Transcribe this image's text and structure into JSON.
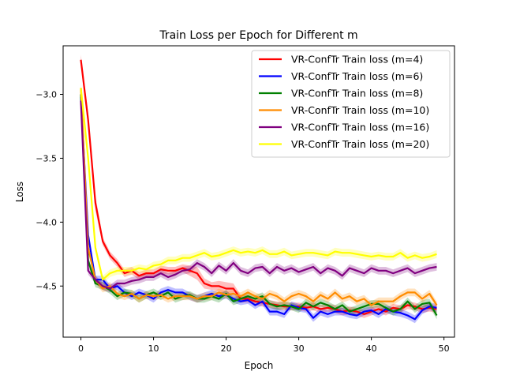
{
  "chart_data": {
    "type": "line",
    "title": "Train Loss per Epoch for Different m",
    "xlabel": "Epoch",
    "ylabel": "Loss",
    "xlim": [
      -2.45,
      51.45
    ],
    "ylim": [
      -4.9,
      -2.62
    ],
    "xticks": [
      0,
      10,
      20,
      30,
      40,
      50
    ],
    "yticks": [
      -3.0,
      -3.5,
      -4.0,
      -4.5
    ],
    "xtick_labels": [
      "0",
      "10",
      "20",
      "30",
      "40",
      "50"
    ],
    "ytick_labels": [
      "−3.0",
      "−3.5",
      "−4.0",
      "−4.5"
    ],
    "grid": false,
    "legend_position": "top-right",
    "series": [
      {
        "name": "VR-ConfTr Train loss (m=4)",
        "color": "#ff0000",
        "values": [
          -2.73,
          -3.2,
          -3.85,
          -4.15,
          -4.26,
          -4.32,
          -4.4,
          -4.38,
          -4.42,
          -4.4,
          -4.4,
          -4.37,
          -4.38,
          -4.38,
          -4.36,
          -4.38,
          -4.4,
          -4.48,
          -4.5,
          -4.5,
          -4.52,
          -4.52,
          -4.6,
          -4.6,
          -4.62,
          -4.63,
          -4.64,
          -4.65,
          -4.66,
          -4.66,
          -4.66,
          -4.67,
          -4.66,
          -4.68,
          -4.67,
          -4.68,
          -4.7,
          -4.69,
          -4.7,
          -4.72,
          -4.7,
          -4.68,
          -4.7,
          -4.67,
          -4.68,
          -4.65,
          -4.66,
          -4.68,
          -4.67,
          -4.68
        ],
        "band": [
          0.04,
          0.06,
          0.06,
          0.03,
          0.03,
          0.03,
          0.03,
          0.03,
          0.03,
          0.03,
          0.03,
          0.03,
          0.03,
          0.03,
          0.03,
          0.04,
          0.05,
          0.04,
          0.03,
          0.04,
          0.05,
          0.04,
          0.03,
          0.03,
          0.03,
          0.03,
          0.03,
          0.03,
          0.03,
          0.03,
          0.03,
          0.03,
          0.03,
          0.03,
          0.03,
          0.03,
          0.03,
          0.03,
          0.03,
          0.03,
          0.03,
          0.03,
          0.03,
          0.03,
          0.03,
          0.03,
          0.03,
          0.03,
          0.03,
          0.03
        ]
      },
      {
        "name": "VR-ConfTr Train loss (m=6)",
        "color": "#0000ff",
        "values": [
          -3.02,
          -4.1,
          -4.45,
          -4.45,
          -4.52,
          -4.5,
          -4.55,
          -4.58,
          -4.55,
          -4.57,
          -4.6,
          -4.55,
          -4.53,
          -4.55,
          -4.55,
          -4.58,
          -4.6,
          -4.58,
          -4.56,
          -4.58,
          -4.57,
          -4.6,
          -4.62,
          -4.61,
          -4.65,
          -4.62,
          -4.7,
          -4.7,
          -4.72,
          -4.65,
          -4.67,
          -4.68,
          -4.75,
          -4.7,
          -4.72,
          -4.7,
          -4.7,
          -4.72,
          -4.73,
          -4.7,
          -4.69,
          -4.72,
          -4.68,
          -4.7,
          -4.71,
          -4.73,
          -4.76,
          -4.69,
          -4.66,
          -4.67
        ],
        "band": [
          0.03,
          0.03,
          0.03,
          0.03,
          0.03,
          0.03,
          0.03,
          0.03,
          0.03,
          0.03,
          0.03,
          0.03,
          0.03,
          0.03,
          0.03,
          0.03,
          0.03,
          0.03,
          0.03,
          0.03,
          0.03,
          0.03,
          0.03,
          0.03,
          0.03,
          0.03,
          0.03,
          0.03,
          0.03,
          0.03,
          0.03,
          0.03,
          0.03,
          0.03,
          0.03,
          0.03,
          0.03,
          0.03,
          0.03,
          0.03,
          0.03,
          0.03,
          0.03,
          0.03,
          0.03,
          0.03,
          0.03,
          0.03,
          0.03,
          0.03
        ]
      },
      {
        "name": "VR-ConfTr Train loss (m=8)",
        "color": "#008000",
        "values": [
          -3.0,
          -4.3,
          -4.48,
          -4.5,
          -4.53,
          -4.58,
          -4.55,
          -4.56,
          -4.6,
          -4.57,
          -4.55,
          -4.58,
          -4.55,
          -4.6,
          -4.58,
          -4.57,
          -4.6,
          -4.6,
          -4.58,
          -4.6,
          -4.56,
          -4.62,
          -4.6,
          -4.58,
          -4.6,
          -4.58,
          -4.64,
          -4.66,
          -4.65,
          -4.66,
          -4.68,
          -4.63,
          -4.66,
          -4.63,
          -4.65,
          -4.68,
          -4.65,
          -4.7,
          -4.68,
          -4.66,
          -4.64,
          -4.64,
          -4.67,
          -4.7,
          -4.68,
          -4.62,
          -4.68,
          -4.64,
          -4.63,
          -4.73
        ],
        "band": [
          0.03,
          0.03,
          0.03,
          0.03,
          0.03,
          0.03,
          0.03,
          0.03,
          0.03,
          0.03,
          0.03,
          0.03,
          0.03,
          0.03,
          0.03,
          0.03,
          0.03,
          0.03,
          0.03,
          0.03,
          0.03,
          0.03,
          0.03,
          0.03,
          0.03,
          0.03,
          0.03,
          0.03,
          0.03,
          0.03,
          0.03,
          0.03,
          0.03,
          0.03,
          0.03,
          0.03,
          0.03,
          0.03,
          0.03,
          0.03,
          0.03,
          0.03,
          0.03,
          0.03,
          0.03,
          0.03,
          0.03,
          0.03,
          0.03,
          0.03
        ]
      },
      {
        "name": "VR-ConfTr Train loss (m=10)",
        "color": "#ff8c00",
        "values": [
          -2.95,
          -4.2,
          -4.45,
          -4.52,
          -4.5,
          -4.56,
          -4.58,
          -4.56,
          -4.6,
          -4.57,
          -4.58,
          -4.57,
          -4.6,
          -4.58,
          -4.58,
          -4.58,
          -4.6,
          -4.58,
          -4.58,
          -4.55,
          -4.57,
          -4.56,
          -4.58,
          -4.55,
          -4.58,
          -4.6,
          -4.56,
          -4.58,
          -4.62,
          -4.58,
          -4.56,
          -4.58,
          -4.62,
          -4.57,
          -4.6,
          -4.55,
          -4.6,
          -4.58,
          -4.62,
          -4.6,
          -4.65,
          -4.62,
          -4.62,
          -4.62,
          -4.58,
          -4.55,
          -4.55,
          -4.6,
          -4.56,
          -4.65
        ],
        "band": [
          0.03,
          0.03,
          0.03,
          0.03,
          0.03,
          0.03,
          0.03,
          0.03,
          0.03,
          0.03,
          0.03,
          0.03,
          0.03,
          0.03,
          0.03,
          0.03,
          0.03,
          0.03,
          0.03,
          0.03,
          0.03,
          0.03,
          0.03,
          0.03,
          0.03,
          0.03,
          0.03,
          0.03,
          0.03,
          0.03,
          0.03,
          0.03,
          0.03,
          0.03,
          0.03,
          0.03,
          0.03,
          0.03,
          0.03,
          0.03,
          0.03,
          0.03,
          0.03,
          0.03,
          0.03,
          0.03,
          0.03,
          0.03,
          0.03,
          0.03
        ]
      },
      {
        "name": "VR-ConfTr Train loss (m=16)",
        "color": "#800080",
        "values": [
          -3.05,
          -4.38,
          -4.45,
          -4.5,
          -4.52,
          -4.48,
          -4.48,
          -4.46,
          -4.45,
          -4.43,
          -4.43,
          -4.4,
          -4.43,
          -4.41,
          -4.38,
          -4.37,
          -4.32,
          -4.35,
          -4.4,
          -4.34,
          -4.38,
          -4.32,
          -4.38,
          -4.4,
          -4.36,
          -4.35,
          -4.4,
          -4.35,
          -4.38,
          -4.36,
          -4.39,
          -4.37,
          -4.35,
          -4.4,
          -4.36,
          -4.38,
          -4.42,
          -4.36,
          -4.38,
          -4.4,
          -4.36,
          -4.38,
          -4.38,
          -4.4,
          -4.38,
          -4.36,
          -4.4,
          -4.38,
          -4.36,
          -4.35
        ],
        "band": [
          0.03,
          0.03,
          0.03,
          0.03,
          0.03,
          0.03,
          0.03,
          0.03,
          0.03,
          0.03,
          0.03,
          0.03,
          0.03,
          0.03,
          0.03,
          0.03,
          0.03,
          0.03,
          0.03,
          0.03,
          0.03,
          0.03,
          0.03,
          0.03,
          0.03,
          0.03,
          0.03,
          0.03,
          0.03,
          0.03,
          0.03,
          0.03,
          0.03,
          0.03,
          0.03,
          0.03,
          0.03,
          0.03,
          0.03,
          0.03,
          0.03,
          0.03,
          0.03,
          0.03,
          0.03,
          0.03,
          0.03,
          0.03,
          0.03,
          0.03
        ]
      },
      {
        "name": "VR-ConfTr Train loss (m=20)",
        "color": "#ffff00",
        "values": [
          -2.95,
          -3.5,
          -4.2,
          -4.45,
          -4.4,
          -4.38,
          -4.38,
          -4.38,
          -4.36,
          -4.37,
          -4.34,
          -4.33,
          -4.3,
          -4.3,
          -4.28,
          -4.28,
          -4.26,
          -4.24,
          -4.27,
          -4.26,
          -4.24,
          -4.22,
          -4.24,
          -4.23,
          -4.24,
          -4.22,
          -4.25,
          -4.25,
          -4.23,
          -4.26,
          -4.25,
          -4.24,
          -4.24,
          -4.25,
          -4.26,
          -4.23,
          -4.24,
          -4.24,
          -4.25,
          -4.26,
          -4.27,
          -4.26,
          -4.27,
          -4.27,
          -4.24,
          -4.28,
          -4.26,
          -4.28,
          -4.27,
          -4.25
        ],
        "band": [
          0.03,
          0.03,
          0.03,
          0.03,
          0.03,
          0.03,
          0.03,
          0.03,
          0.03,
          0.03,
          0.03,
          0.03,
          0.03,
          0.03,
          0.03,
          0.03,
          0.03,
          0.03,
          0.03,
          0.03,
          0.03,
          0.03,
          0.03,
          0.03,
          0.03,
          0.03,
          0.03,
          0.03,
          0.03,
          0.03,
          0.03,
          0.03,
          0.03,
          0.03,
          0.03,
          0.03,
          0.03,
          0.03,
          0.03,
          0.03,
          0.03,
          0.03,
          0.03,
          0.03,
          0.03,
          0.03,
          0.03,
          0.03,
          0.03,
          0.03
        ]
      }
    ]
  }
}
